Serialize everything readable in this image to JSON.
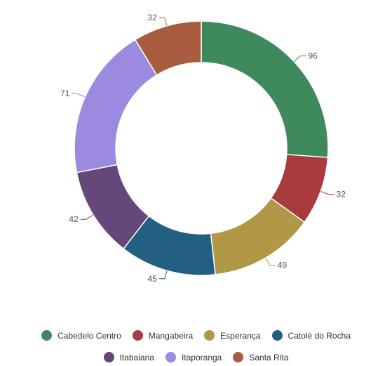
{
  "chart_data": {
    "type": "pie",
    "variant": "donut",
    "title": "",
    "categories": [
      "Cabedelo Centro",
      "Mangabeira",
      "Esperança",
      "Catolé do Rocha",
      "Itabaiana",
      "Itaporanga",
      "Santa Rita"
    ],
    "values": [
      96,
      32,
      49,
      45,
      42,
      71,
      32
    ],
    "colors": [
      "#3e8a5c",
      "#a83b3d",
      "#b09847",
      "#225f80",
      "#65477a",
      "#9c8ae0",
      "#a85d40"
    ],
    "legend_position": "bottom",
    "data_labels": true
  },
  "legend": {
    "row1": [
      "Cabedelo Centro",
      "Mangabeira",
      "Esperança",
      "Catolé do Rocha"
    ],
    "row2": [
      "Itabaiana",
      "Itaporanga",
      "Santa Rita"
    ]
  }
}
